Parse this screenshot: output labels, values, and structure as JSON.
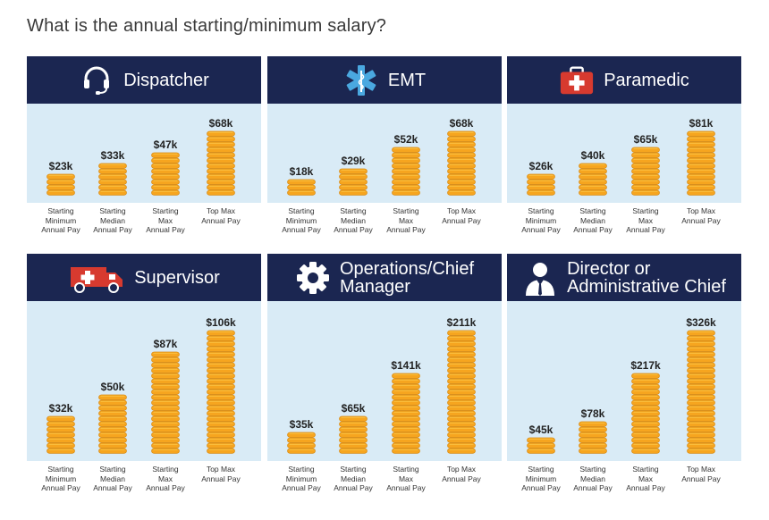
{
  "page": {
    "title": "What is the annual starting/minimum salary?"
  },
  "chart_data": [
    {
      "type": "bar",
      "title": "Dispatcher",
      "icon": "headset-icon",
      "categories": [
        "Starting\nMinimum\nAnnual Pay",
        "Starting\nMedian\nAnnual Pay",
        "Starting\nMax\nAnnual Pay",
        "Top Max\nAnnual Pay"
      ],
      "values": [
        23,
        33,
        47,
        68
      ],
      "value_labels": [
        "$23k",
        "$33k",
        "$47k",
        "$68k"
      ],
      "unit": "k USD"
    },
    {
      "type": "bar",
      "title": "EMT",
      "icon": "star-of-life-icon",
      "categories": [
        "Starting\nMinimum\nAnnual Pay",
        "Starting\nMedian\nAnnual Pay",
        "Starting\nMax\nAnnual Pay",
        "Top Max\nAnnual Pay"
      ],
      "values": [
        18,
        29,
        52,
        68
      ],
      "value_labels": [
        "$18k",
        "$29k",
        "$52k",
        "$68k"
      ],
      "unit": "k USD"
    },
    {
      "type": "bar",
      "title": "Paramedic",
      "icon": "medical-kit-icon",
      "categories": [
        "Starting\nMinimum\nAnnual Pay",
        "Starting\nMedian\nAnnual Pay",
        "Starting\nMax\nAnnual Pay",
        "Top Max\nAnnual Pay"
      ],
      "values": [
        26,
        40,
        65,
        81
      ],
      "value_labels": [
        "$26k",
        "$40k",
        "$65k",
        "$81k"
      ],
      "unit": "k USD"
    },
    {
      "type": "bar",
      "title": "Supervisor",
      "icon": "ambulance-icon",
      "categories": [
        "Starting\nMinimum\nAnnual Pay",
        "Starting\nMedian\nAnnual Pay",
        "Starting\nMax\nAnnual Pay",
        "Top Max\nAnnual Pay"
      ],
      "values": [
        32,
        50,
        87,
        106
      ],
      "value_labels": [
        "$32k",
        "$50k",
        "$87k",
        "$106k"
      ],
      "unit": "k USD"
    },
    {
      "type": "bar",
      "title": "Operations/Chief\nManager",
      "icon": "gear-icon",
      "categories": [
        "Starting\nMinimum\nAnnual Pay",
        "Starting\nMedian\nAnnual Pay",
        "Starting\nMax\nAnnual Pay",
        "Top Max\nAnnual Pay"
      ],
      "values": [
        35,
        65,
        141,
        211
      ],
      "value_labels": [
        "$35k",
        "$65k",
        "$141k",
        "$211k"
      ],
      "unit": "k USD"
    },
    {
      "type": "bar",
      "title": "Director or\nAdministrative Chief",
      "icon": "person-in-suit-icon",
      "categories": [
        "Starting\nMinimum\nAnnual Pay",
        "Starting\nMedian\nAnnual Pay",
        "Starting\nMax\nAnnual Pay",
        "Top Max\nAnnual Pay"
      ],
      "values": [
        45,
        78,
        217,
        326
      ],
      "value_labels": [
        "$45k",
        "$78k",
        "$217k",
        "$326k"
      ],
      "unit": "k USD"
    }
  ],
  "colors": {
    "header_bg": "#1b2651",
    "panel_bg": "#d9ebf6",
    "coin_fill": "#f6a51f",
    "coin_edge": "#fbc445",
    "coin_stroke": "#d98a10",
    "icon_red": "#d73a2f"
  }
}
